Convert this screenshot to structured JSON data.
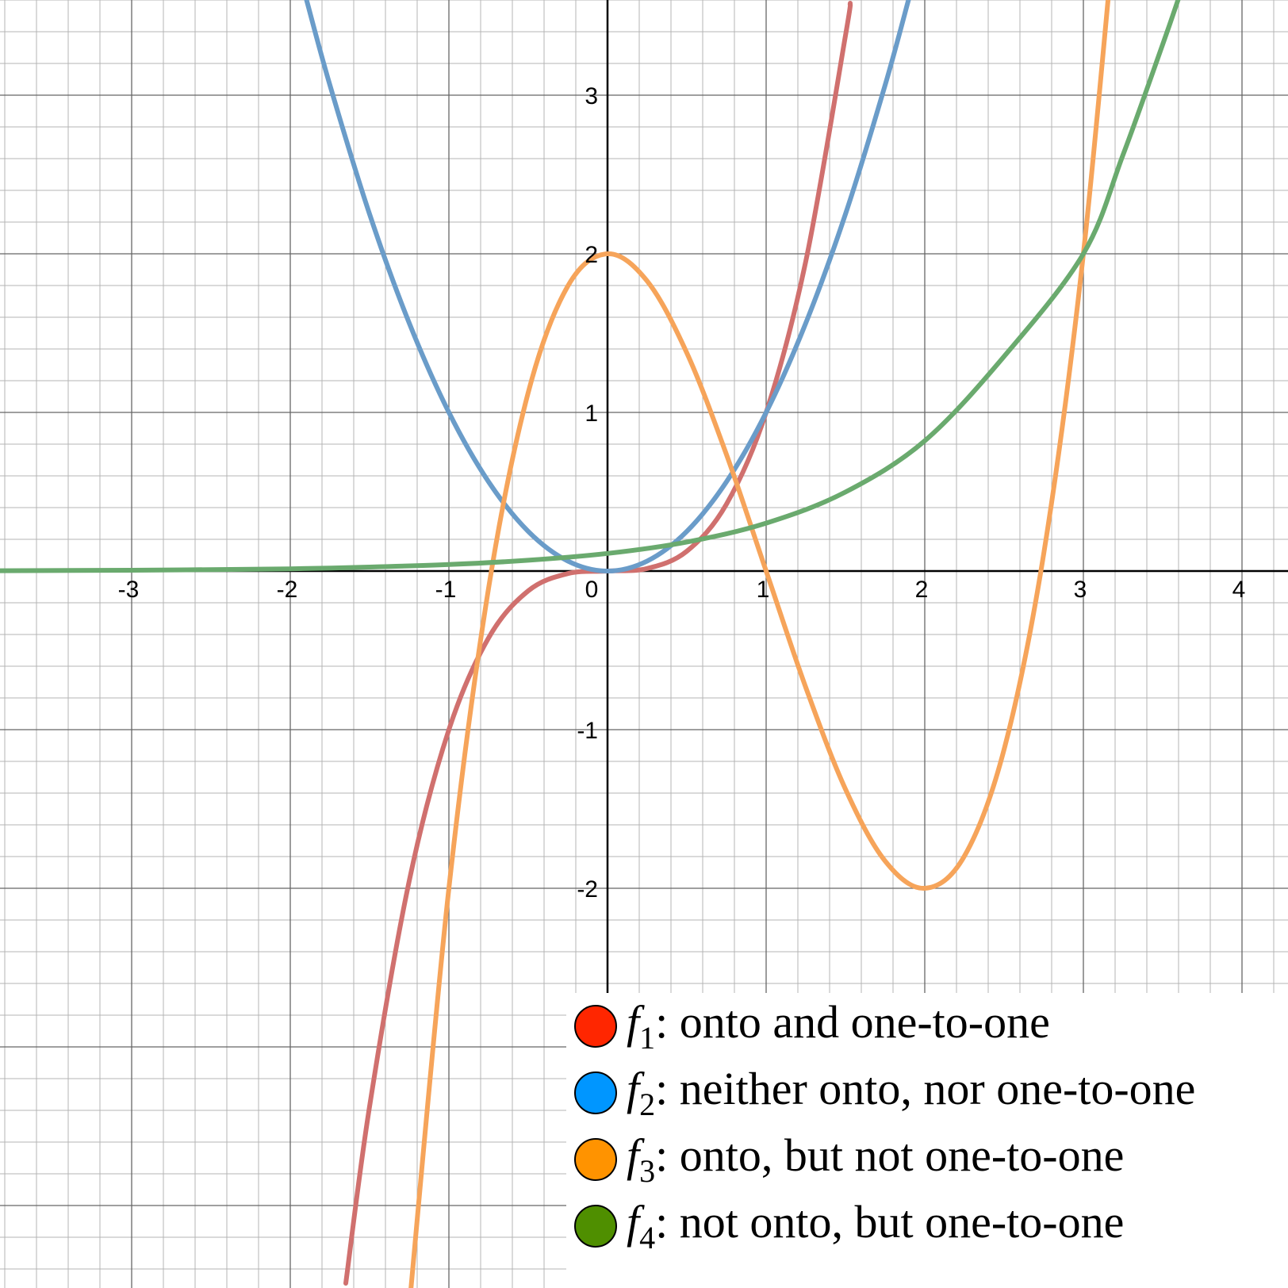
{
  "chart_data": {
    "type": "line",
    "title": "",
    "xlabel": "",
    "ylabel": "",
    "xlim": [
      -3.83,
      4.58
    ],
    "ylim": [
      -4.4,
      3.6
    ],
    "grid": true,
    "x_ticks": [
      "-3",
      "-2",
      "-1",
      "0",
      "1",
      "2",
      "3",
      "4"
    ],
    "y_ticks": [
      "3",
      "2",
      "1",
      "-1",
      "-2"
    ],
    "series": [
      {
        "name": "f1",
        "color": "#d0706e",
        "description": "onto and one-to-one",
        "x": [
          -1.65,
          -1.5,
          -1.25,
          -1.0,
          -0.75,
          -0.5,
          -0.25,
          0.0,
          0.25,
          0.5,
          0.75,
          1.0,
          1.25,
          1.5,
          1.53
        ],
        "y": [
          -4.49,
          -3.375,
          -1.953,
          -1.0,
          -0.422,
          -0.125,
          -0.016,
          0.0,
          0.016,
          0.125,
          0.422,
          1.0,
          1.953,
          3.375,
          3.58
        ]
      },
      {
        "name": "f2",
        "color": "#6a9cc9",
        "description": "neither onto, nor one-to-one",
        "x": [
          -1.9,
          -1.75,
          -1.5,
          -1.25,
          -1.0,
          -0.75,
          -0.5,
          -0.25,
          0.0,
          0.25,
          0.5,
          0.75,
          1.0,
          1.25,
          1.5,
          1.75,
          1.9
        ],
        "y": [
          3.61,
          3.063,
          2.25,
          1.563,
          1.0,
          0.563,
          0.25,
          0.063,
          0.0,
          0.063,
          0.25,
          0.563,
          1.0,
          1.563,
          2.25,
          3.063,
          3.61
        ]
      },
      {
        "name": "f3",
        "color": "#f6a45a",
        "description": "onto, but not one-to-one",
        "x": [
          -1.25,
          -1.0,
          -0.75,
          -0.5,
          -0.25,
          0.0,
          0.25,
          0.5,
          0.75,
          1.0,
          1.25,
          1.5,
          1.75,
          2.0,
          2.25,
          2.5,
          2.75,
          3.0,
          3.25
        ],
        "y": [
          -4.64,
          -2.0,
          -0.109,
          1.125,
          1.797,
          2.0,
          1.828,
          1.375,
          0.734,
          0.0,
          -0.734,
          -1.375,
          -1.828,
          -2.0,
          -1.797,
          -1.125,
          0.109,
          2.0,
          4.64
        ]
      },
      {
        "name": "f4",
        "color": "#6aaa6e",
        "description": "not onto, but one-to-one",
        "x": [
          -3.83,
          -3.0,
          -2.5,
          -2.0,
          -1.5,
          -1.0,
          -0.5,
          0.0,
          0.5,
          1.0,
          1.5,
          2.0,
          2.5,
          3.0,
          3.25,
          3.5,
          3.6
        ],
        "y": [
          0.002,
          0.005,
          0.009,
          0.014,
          0.025,
          0.041,
          0.068,
          0.111,
          0.183,
          0.302,
          0.498,
          0.821,
          1.353,
          2.0,
          2.624,
          3.32,
          3.61
        ]
      }
    ]
  },
  "legend": {
    "items": [
      {
        "fn": "f",
        "sub": "1",
        "text": ": onto and one-to-one",
        "color": "#ff2600"
      },
      {
        "fn": "f",
        "sub": "2",
        "text": ": neither onto, nor one-to-one",
        "color": "#0096ff"
      },
      {
        "fn": "f",
        "sub": "3",
        "text": ": onto, but not one-to-one",
        "color": "#ff9300"
      },
      {
        "fn": "f",
        "sub": "4",
        "text": ": not onto, but one-to-one",
        "color": "#4f8f00"
      }
    ]
  }
}
